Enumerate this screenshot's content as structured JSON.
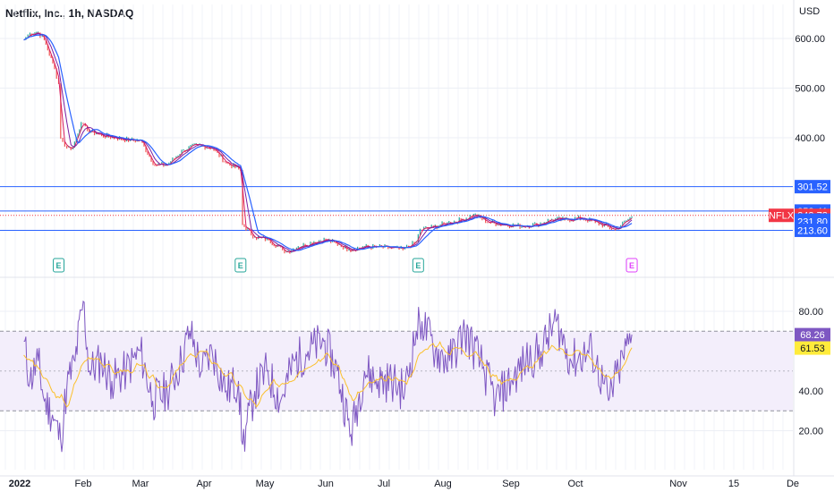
{
  "header": {
    "title": "Netflix, Inc., 1h, NASDAQ",
    "currency": "USD"
  },
  "colors": {
    "candle_up": "#26a69a",
    "candle_down": "#ef5350",
    "ma_fast": "#d81b60",
    "ma_mid": "#7b1fa2",
    "ma_slow": "#2962ff",
    "hline": "#2962ff",
    "price_tag": "#f23645",
    "rsi_line": "#7e57c2",
    "rsi_signal": "#fbc02d",
    "rsi_band_fill": "#f3eefb",
    "earnings": "#26a69a",
    "earnings_future": "#e040fb"
  },
  "chart_data": [
    {
      "type": "line",
      "title": "Netflix, Inc., 1h, NASDAQ",
      "symbol": "NFLX",
      "unit": "USD",
      "ylim": [
        140,
        720
      ],
      "y_ticks": [
        "600.00",
        "500.00",
        "400.00"
      ],
      "y_tick_values": [
        600,
        500,
        400
      ],
      "x_ticks": [
        "2022",
        "Feb",
        "Mar",
        "Apr",
        "May",
        "Jun",
        "Jul",
        "Aug",
        "Sep",
        "Oct",
        "Nov",
        "15",
        "De"
      ],
      "series": [
        {
          "values_by_date": [
            [
              "2022-01-03",
              597
            ],
            [
              "2022-01-06",
              610
            ],
            [
              "2022-01-10",
              612
            ],
            [
              "2022-01-13",
              598
            ],
            [
              "2022-01-18",
              540
            ],
            [
              "2022-01-20",
              510
            ],
            [
              "2022-01-21",
              400
            ],
            [
              "2022-01-24",
              380
            ],
            [
              "2022-01-27",
              380
            ],
            [
              "2022-01-31",
              430
            ],
            [
              "2022-02-03",
              415
            ],
            [
              "2022-02-10",
              405
            ],
            [
              "2022-02-17",
              400
            ],
            [
              "2022-02-24",
              395
            ],
            [
              "2022-03-01",
              395
            ],
            [
              "2022-03-08",
              345
            ],
            [
              "2022-03-14",
              345
            ],
            [
              "2022-03-22",
              375
            ],
            [
              "2022-03-29",
              385
            ],
            [
              "2022-04-05",
              380
            ],
            [
              "2022-04-12",
              350
            ],
            [
              "2022-04-19",
              335
            ],
            [
              "2022-04-20",
              226
            ],
            [
              "2022-04-26",
              200
            ],
            [
              "2022-05-03",
              195
            ],
            [
              "2022-05-10",
              175
            ],
            [
              "2022-05-12",
              170
            ],
            [
              "2022-05-18",
              180
            ],
            [
              "2022-05-26",
              190
            ],
            [
              "2022-06-01",
              195
            ],
            [
              "2022-06-08",
              185
            ],
            [
              "2022-06-13",
              175
            ],
            [
              "2022-06-21",
              180
            ],
            [
              "2022-06-28",
              180
            ],
            [
              "2022-07-05",
              178
            ],
            [
              "2022-07-11",
              175
            ],
            [
              "2022-07-18",
              190
            ],
            [
              "2022-07-20",
              215
            ],
            [
              "2022-07-27",
              220
            ],
            [
              "2022-08-03",
              228
            ],
            [
              "2022-08-10",
              235
            ],
            [
              "2022-08-15",
              245
            ],
            [
              "2022-08-22",
              230
            ],
            [
              "2022-08-29",
              225
            ],
            [
              "2022-09-06",
              222
            ],
            [
              "2022-09-13",
              225
            ],
            [
              "2022-09-20",
              235
            ],
            [
              "2022-09-26",
              235
            ],
            [
              "2022-10-03",
              238
            ],
            [
              "2022-10-07",
              230
            ],
            [
              "2022-10-13",
              215
            ],
            [
              "2022-10-18",
              240
            ]
          ]
        }
      ],
      "horizontal_levels": [
        301.52,
        252.41,
        213.6
      ],
      "price_tags": [
        {
          "label": "301.52",
          "value": 301.52
        },
        {
          "label": "252.41",
          "value": 252.41
        },
        {
          "label": "243.73",
          "value": 243.73,
          "current": true
        },
        {
          "label": "234.19",
          "value": 234.19
        },
        {
          "label": "231.80",
          "value": 231.8
        },
        {
          "label": "213.60",
          "value": 213.6
        }
      ],
      "earnings_markers": [
        {
          "label": "E",
          "date": "2022-01-20"
        },
        {
          "label": "E",
          "date": "2022-04-19"
        },
        {
          "label": "E",
          "date": "2022-07-19"
        },
        {
          "label": "E",
          "date": "2022-10-18",
          "upcoming": true
        }
      ],
      "grid": true
    },
    {
      "type": "line",
      "title": "",
      "ylim": [
        5,
        100
      ],
      "y_ticks": [
        "80.00",
        "40.00",
        "20.00"
      ],
      "y_tick_values": [
        80,
        40,
        20
      ],
      "band": [
        30,
        70
      ],
      "midline": 50,
      "series": [
        {
          "values_by_date": [
            [
              "2022-01-03",
              65
            ],
            [
              "2022-01-06",
              45
            ],
            [
              "2022-01-10",
              55
            ],
            [
              "2022-01-13",
              35
            ],
            [
              "2022-01-17",
              28
            ],
            [
              "2022-01-21",
              15
            ],
            [
              "2022-01-24",
              42
            ],
            [
              "2022-01-28",
              55
            ],
            [
              "2022-02-01",
              85
            ],
            [
              "2022-02-04",
              50
            ],
            [
              "2022-02-10",
              55
            ],
            [
              "2022-02-15",
              45
            ],
            [
              "2022-02-22",
              50
            ],
            [
              "2022-03-01",
              60
            ],
            [
              "2022-03-07",
              35
            ],
            [
              "2022-03-14",
              40
            ],
            [
              "2022-03-21",
              55
            ],
            [
              "2022-03-25",
              70
            ],
            [
              "2022-03-31",
              50
            ],
            [
              "2022-04-05",
              60
            ],
            [
              "2022-04-12",
              40
            ],
            [
              "2022-04-18",
              45
            ],
            [
              "2022-04-20",
              13
            ],
            [
              "2022-04-26",
              40
            ],
            [
              "2022-05-02",
              50
            ],
            [
              "2022-05-09",
              35
            ],
            [
              "2022-05-16",
              55
            ],
            [
              "2022-05-23",
              60
            ],
            [
              "2022-05-31",
              65
            ],
            [
              "2022-06-07",
              50
            ],
            [
              "2022-06-14",
              18
            ],
            [
              "2022-06-21",
              50
            ],
            [
              "2022-06-28",
              45
            ],
            [
              "2022-07-05",
              45
            ],
            [
              "2022-07-12",
              40
            ],
            [
              "2022-07-18",
              70
            ],
            [
              "2022-07-21",
              75
            ],
            [
              "2022-07-28",
              60
            ],
            [
              "2022-08-04",
              55
            ],
            [
              "2022-08-11",
              70
            ],
            [
              "2022-08-18",
              55
            ],
            [
              "2022-08-25",
              35
            ],
            [
              "2022-09-01",
              45
            ],
            [
              "2022-09-08",
              55
            ],
            [
              "2022-09-15",
              60
            ],
            [
              "2022-09-22",
              75
            ],
            [
              "2022-09-29",
              55
            ],
            [
              "2022-10-06",
              60
            ],
            [
              "2022-10-11",
              35
            ],
            [
              "2022-10-14",
              50
            ],
            [
              "2022-10-18",
              68.26
            ]
          ]
        },
        {
          "values_by_date": [
            [
              "2022-01-03",
              58
            ],
            [
              "2022-01-10",
              50
            ],
            [
              "2022-01-17",
              38
            ],
            [
              "2022-01-24",
              33
            ],
            [
              "2022-01-31",
              55
            ],
            [
              "2022-02-07",
              58
            ],
            [
              "2022-02-14",
              50
            ],
            [
              "2022-02-21",
              50
            ],
            [
              "2022-03-01",
              52
            ],
            [
              "2022-03-08",
              42
            ],
            [
              "2022-03-15",
              45
            ],
            [
              "2022-03-22",
              55
            ],
            [
              "2022-03-29",
              60
            ],
            [
              "2022-04-05",
              55
            ],
            [
              "2022-04-12",
              48
            ],
            [
              "2022-04-19",
              40
            ],
            [
              "2022-04-26",
              32
            ],
            [
              "2022-05-03",
              42
            ],
            [
              "2022-05-10",
              45
            ],
            [
              "2022-05-17",
              50
            ],
            [
              "2022-05-24",
              55
            ],
            [
              "2022-05-31",
              58
            ],
            [
              "2022-06-07",
              52
            ],
            [
              "2022-06-14",
              35
            ],
            [
              "2022-06-21",
              42
            ],
            [
              "2022-06-28",
              45
            ],
            [
              "2022-07-05",
              45
            ],
            [
              "2022-07-12",
              45
            ],
            [
              "2022-07-19",
              58
            ],
            [
              "2022-07-26",
              65
            ],
            [
              "2022-08-02",
              60
            ],
            [
              "2022-08-09",
              62
            ],
            [
              "2022-08-16",
              58
            ],
            [
              "2022-08-23",
              48
            ],
            [
              "2022-08-30",
              45
            ],
            [
              "2022-09-06",
              50
            ],
            [
              "2022-09-13",
              55
            ],
            [
              "2022-09-20",
              62
            ],
            [
              "2022-09-27",
              60
            ],
            [
              "2022-10-04",
              58
            ],
            [
              "2022-10-11",
              45
            ],
            [
              "2022-10-18",
              61.53
            ]
          ]
        }
      ],
      "value_tags": [
        {
          "label": "68.26",
          "value": 68.26,
          "series": 0
        },
        {
          "label": "61.53",
          "value": 61.53,
          "series": 1
        }
      ],
      "grid": true
    }
  ]
}
